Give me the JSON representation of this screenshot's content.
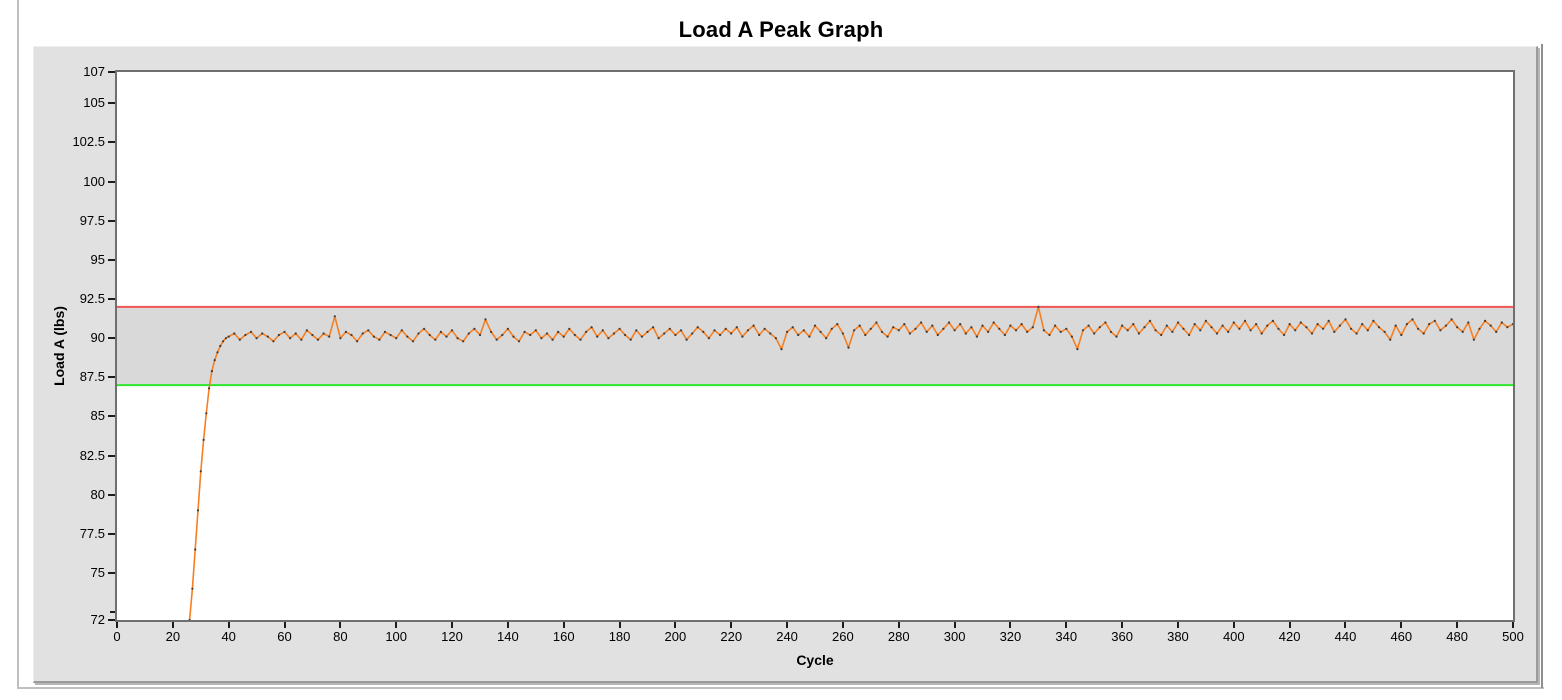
{
  "window": {
    "title": "Load A Peak Graph"
  },
  "colors": {
    "panel_background": "#e1e1e1",
    "plot_background": "#ffffff",
    "limit_band_fill": "#d9d9d9",
    "upper_limit_line": "#f25454",
    "lower_limit_line": "#2ce62c",
    "series_line": "#f57f22",
    "series_marker": "#3c3c3c",
    "plot_border": "#6f6f6f"
  },
  "chart_data": {
    "type": "line",
    "title": "Load A Peak Graph",
    "xlabel": "Cycle",
    "ylabel": "Load A (lbs)",
    "xlim": [
      0,
      500
    ],
    "ylim": [
      72,
      107
    ],
    "grid": false,
    "legend": false,
    "x_ticks": [
      0,
      20,
      40,
      60,
      80,
      100,
      120,
      140,
      160,
      180,
      200,
      220,
      240,
      260,
      280,
      300,
      320,
      340,
      360,
      380,
      400,
      420,
      440,
      460,
      480,
      500
    ],
    "y_ticks": [
      107,
      105,
      102.5,
      100,
      97.5,
      95,
      92.5,
      90,
      87.5,
      85,
      82.5,
      80,
      77.5,
      75,
      72
    ],
    "y_minor_ticks": [
      72.5
    ],
    "upper_limit": {
      "value": 92,
      "color": "#f25454"
    },
    "lower_limit": {
      "value": 87,
      "color": "#2ce62c"
    },
    "band_fill": "#d9d9d9",
    "series": [
      {
        "name": "Load A Peak",
        "color": "#f57f22",
        "marker_color": "#3c3c3c",
        "points": [
          [
            26,
            72
          ],
          [
            27,
            74
          ],
          [
            28,
            76.5
          ],
          [
            29,
            79
          ],
          [
            30,
            81.5
          ],
          [
            31,
            83.5
          ],
          [
            32,
            85.2
          ],
          [
            33,
            86.8
          ],
          [
            34,
            87.9
          ],
          [
            35,
            88.6
          ],
          [
            36,
            89.1
          ],
          [
            37,
            89.5
          ],
          [
            38,
            89.8
          ],
          [
            39,
            90
          ],
          [
            40,
            90.1
          ],
          [
            42,
            90.3
          ],
          [
            44,
            89.9
          ],
          [
            46,
            90.2
          ],
          [
            48,
            90.4
          ],
          [
            50,
            90
          ],
          [
            52,
            90.3
          ],
          [
            54,
            90.1
          ],
          [
            56,
            89.8
          ],
          [
            58,
            90.2
          ],
          [
            60,
            90.4
          ],
          [
            62,
            90
          ],
          [
            64,
            90.3
          ],
          [
            66,
            89.9
          ],
          [
            68,
            90.5
          ],
          [
            70,
            90.2
          ],
          [
            72,
            89.9
          ],
          [
            74,
            90.3
          ],
          [
            76,
            90.1
          ],
          [
            78,
            91.4
          ],
          [
            80,
            90
          ],
          [
            82,
            90.4
          ],
          [
            84,
            90.2
          ],
          [
            86,
            89.8
          ],
          [
            88,
            90.3
          ],
          [
            90,
            90.5
          ],
          [
            92,
            90.1
          ],
          [
            94,
            89.9
          ],
          [
            96,
            90.4
          ],
          [
            98,
            90.2
          ],
          [
            100,
            90
          ],
          [
            102,
            90.5
          ],
          [
            104,
            90.1
          ],
          [
            106,
            89.8
          ],
          [
            108,
            90.3
          ],
          [
            110,
            90.6
          ],
          [
            112,
            90.2
          ],
          [
            114,
            89.9
          ],
          [
            116,
            90.4
          ],
          [
            118,
            90.1
          ],
          [
            120,
            90.5
          ],
          [
            122,
            90
          ],
          [
            124,
            89.8
          ],
          [
            126,
            90.3
          ],
          [
            128,
            90.6
          ],
          [
            130,
            90.2
          ],
          [
            132,
            91.2
          ],
          [
            134,
            90.4
          ],
          [
            136,
            89.9
          ],
          [
            138,
            90.2
          ],
          [
            140,
            90.6
          ],
          [
            142,
            90.1
          ],
          [
            144,
            89.8
          ],
          [
            146,
            90.4
          ],
          [
            148,
            90.2
          ],
          [
            150,
            90.5
          ],
          [
            152,
            90
          ],
          [
            154,
            90.3
          ],
          [
            156,
            89.9
          ],
          [
            158,
            90.4
          ],
          [
            160,
            90.1
          ],
          [
            162,
            90.6
          ],
          [
            164,
            90.2
          ],
          [
            166,
            89.9
          ],
          [
            168,
            90.4
          ],
          [
            170,
            90.7
          ],
          [
            172,
            90.1
          ],
          [
            174,
            90.5
          ],
          [
            176,
            90
          ],
          [
            178,
            90.3
          ],
          [
            180,
            90.6
          ],
          [
            182,
            90.2
          ],
          [
            184,
            89.9
          ],
          [
            186,
            90.5
          ],
          [
            188,
            90.1
          ],
          [
            190,
            90.4
          ],
          [
            192,
            90.7
          ],
          [
            194,
            90
          ],
          [
            196,
            90.3
          ],
          [
            198,
            90.6
          ],
          [
            200,
            90.2
          ],
          [
            202,
            90.5
          ],
          [
            204,
            89.9
          ],
          [
            206,
            90.3
          ],
          [
            208,
            90.7
          ],
          [
            210,
            90.4
          ],
          [
            212,
            90
          ],
          [
            214,
            90.5
          ],
          [
            216,
            90.2
          ],
          [
            218,
            90.6
          ],
          [
            220,
            90.3
          ],
          [
            222,
            90.7
          ],
          [
            224,
            90.1
          ],
          [
            226,
            90.5
          ],
          [
            228,
            90.8
          ],
          [
            230,
            90.2
          ],
          [
            232,
            90.6
          ],
          [
            234,
            90.3
          ],
          [
            236,
            90
          ],
          [
            238,
            89.3
          ],
          [
            240,
            90.4
          ],
          [
            242,
            90.7
          ],
          [
            244,
            90.2
          ],
          [
            246,
            90.5
          ],
          [
            248,
            90.1
          ],
          [
            250,
            90.8
          ],
          [
            252,
            90.4
          ],
          [
            254,
            90
          ],
          [
            256,
            90.6
          ],
          [
            258,
            90.9
          ],
          [
            260,
            90.3
          ],
          [
            262,
            89.4
          ],
          [
            264,
            90.5
          ],
          [
            266,
            90.8
          ],
          [
            268,
            90.2
          ],
          [
            270,
            90.6
          ],
          [
            272,
            91
          ],
          [
            274,
            90.4
          ],
          [
            276,
            90.1
          ],
          [
            278,
            90.7
          ],
          [
            280,
            90.5
          ],
          [
            282,
            90.9
          ],
          [
            284,
            90.3
          ],
          [
            286,
            90.6
          ],
          [
            288,
            91
          ],
          [
            290,
            90.4
          ],
          [
            292,
            90.8
          ],
          [
            294,
            90.2
          ],
          [
            296,
            90.6
          ],
          [
            298,
            91
          ],
          [
            300,
            90.5
          ],
          [
            302,
            90.9
          ],
          [
            304,
            90.3
          ],
          [
            306,
            90.7
          ],
          [
            308,
            90.1
          ],
          [
            310,
            90.8
          ],
          [
            312,
            90.4
          ],
          [
            314,
            91
          ],
          [
            316,
            90.6
          ],
          [
            318,
            90.2
          ],
          [
            320,
            90.8
          ],
          [
            322,
            90.5
          ],
          [
            324,
            90.9
          ],
          [
            326,
            90.4
          ],
          [
            328,
            90.7
          ],
          [
            330,
            92
          ],
          [
            332,
            90.5
          ],
          [
            334,
            90.2
          ],
          [
            336,
            90.8
          ],
          [
            338,
            90.4
          ],
          [
            340,
            90.6
          ],
          [
            342,
            90.1
          ],
          [
            344,
            89.3
          ],
          [
            346,
            90.5
          ],
          [
            348,
            90.8
          ],
          [
            350,
            90.3
          ],
          [
            352,
            90.7
          ],
          [
            354,
            91
          ],
          [
            356,
            90.4
          ],
          [
            358,
            90.1
          ],
          [
            360,
            90.8
          ],
          [
            362,
            90.5
          ],
          [
            364,
            90.9
          ],
          [
            366,
            90.3
          ],
          [
            368,
            90.7
          ],
          [
            370,
            91.1
          ],
          [
            372,
            90.5
          ],
          [
            374,
            90.2
          ],
          [
            376,
            90.8
          ],
          [
            378,
            90.4
          ],
          [
            380,
            91
          ],
          [
            382,
            90.6
          ],
          [
            384,
            90.2
          ],
          [
            386,
            90.9
          ],
          [
            388,
            90.5
          ],
          [
            390,
            91.1
          ],
          [
            392,
            90.7
          ],
          [
            394,
            90.3
          ],
          [
            396,
            90.8
          ],
          [
            398,
            90.4
          ],
          [
            400,
            91
          ],
          [
            402,
            90.6
          ],
          [
            404,
            91.1
          ],
          [
            406,
            90.5
          ],
          [
            408,
            90.9
          ],
          [
            410,
            90.3
          ],
          [
            412,
            90.8
          ],
          [
            414,
            91.1
          ],
          [
            416,
            90.6
          ],
          [
            418,
            90.2
          ],
          [
            420,
            90.9
          ],
          [
            422,
            90.5
          ],
          [
            424,
            91
          ],
          [
            426,
            90.7
          ],
          [
            428,
            90.3
          ],
          [
            430,
            90.9
          ],
          [
            432,
            90.6
          ],
          [
            434,
            91.1
          ],
          [
            436,
            90.4
          ],
          [
            438,
            90.8
          ],
          [
            440,
            91.2
          ],
          [
            442,
            90.6
          ],
          [
            444,
            90.3
          ],
          [
            446,
            90.9
          ],
          [
            448,
            90.5
          ],
          [
            450,
            91.1
          ],
          [
            452,
            90.7
          ],
          [
            454,
            90.4
          ],
          [
            456,
            89.9
          ],
          [
            458,
            90.8
          ],
          [
            460,
            90.2
          ],
          [
            462,
            90.9
          ],
          [
            464,
            91.2
          ],
          [
            466,
            90.6
          ],
          [
            468,
            90.3
          ],
          [
            470,
            90.9
          ],
          [
            472,
            91.1
          ],
          [
            474,
            90.5
          ],
          [
            476,
            90.8
          ],
          [
            478,
            91.2
          ],
          [
            480,
            90.7
          ],
          [
            482,
            90.4
          ],
          [
            484,
            91
          ],
          [
            486,
            89.9
          ],
          [
            488,
            90.6
          ],
          [
            490,
            91.1
          ],
          [
            492,
            90.8
          ],
          [
            494,
            90.4
          ],
          [
            496,
            91
          ],
          [
            498,
            90.7
          ],
          [
            500,
            90.9
          ]
        ]
      }
    ]
  }
}
